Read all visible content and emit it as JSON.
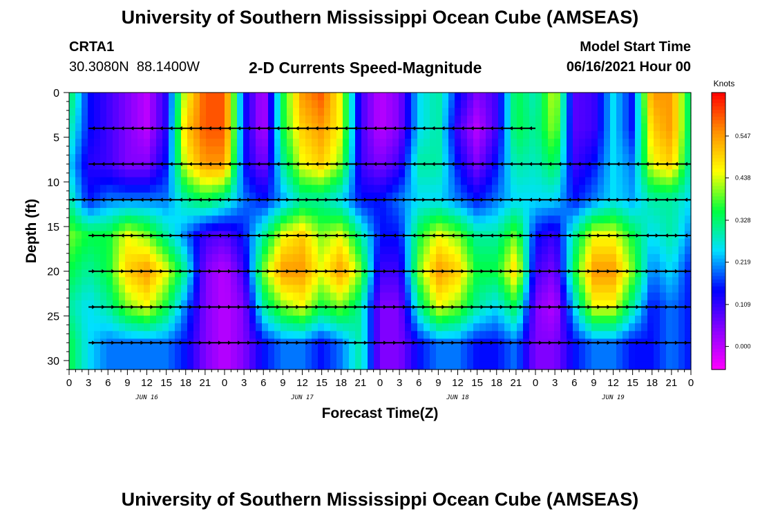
{
  "header": {
    "title": "University of Southern Mississippi Ocean Cube (AMSEAS)",
    "station": "CRTA1",
    "coords": "30.3080N  88.1400W",
    "subtitle": "2-D Currents Speed-Magnitude",
    "model_start_label": "Model Start Time",
    "model_start_value": "06/16/2021 Hour 00"
  },
  "footer": {
    "title": "University of Southern Mississippi Ocean Cube (AMSEAS)"
  },
  "colorbar": {
    "unit": "Knots",
    "labels": [
      "0.547",
      "0.438",
      "0.328",
      "0.219",
      "0.109",
      "0.000"
    ],
    "label_values": [
      0.547,
      0.438,
      0.328,
      0.219,
      0.109,
      0.0
    ],
    "vmin": -0.06,
    "vmax": 0.66,
    "colors": [
      "#ff00ff",
      "#8a00ff",
      "#0000ff",
      "#00e0ff",
      "#00ff40",
      "#ffff00",
      "#ff9000",
      "#ff0000"
    ]
  },
  "chart_data": {
    "type": "heatmap",
    "title": "2-D Currents Speed-Magnitude",
    "xlabel": "Forecast Time(Z)",
    "ylabel": "Depth (ft)",
    "x_ticks": [
      "0",
      "3",
      "6",
      "9",
      "12",
      "15",
      "18",
      "21",
      "0",
      "3",
      "6",
      "9",
      "12",
      "15",
      "18",
      "21",
      "0",
      "3",
      "6",
      "9",
      "12",
      "15",
      "18",
      "21",
      "0",
      "3",
      "6",
      "9",
      "12",
      "15",
      "18",
      "21",
      "0"
    ],
    "day_labels": [
      "JUN 16",
      "JUN 17",
      "JUN 18",
      "JUN 19"
    ],
    "xlim": [
      0,
      96
    ],
    "y_ticks": [
      0,
      5,
      10,
      15,
      20,
      25,
      30
    ],
    "ylim": [
      0,
      31
    ],
    "y_inverted": true,
    "time_hours": [
      0,
      3,
      6,
      9,
      12,
      15,
      18,
      21,
      24,
      27,
      30,
      33,
      36,
      39,
      42,
      45,
      48,
      51,
      54,
      57,
      60,
      63,
      66,
      69,
      72,
      75,
      78,
      81,
      84,
      87,
      90,
      93,
      96
    ],
    "depth_ft": [
      0,
      4,
      8,
      12,
      16,
      20,
      24,
      28
    ],
    "speed_knots": [
      [
        0.35,
        0.15,
        0.1,
        0.05,
        0.0,
        0.12,
        0.45,
        0.6,
        0.6,
        0.15,
        0.0,
        0.35,
        0.55,
        0.6,
        0.45,
        0.1,
        0.0,
        0.05,
        0.25,
        0.3,
        0.15,
        0.05,
        0.1,
        0.35,
        0.28,
        0.45,
        0.08,
        0.1,
        0.25,
        0.15,
        0.55,
        0.55,
        0.3
      ],
      [
        0.3,
        0.15,
        0.1,
        0.05,
        0.0,
        0.12,
        0.5,
        0.6,
        0.6,
        0.15,
        0.0,
        0.35,
        0.5,
        0.55,
        0.45,
        0.1,
        0.0,
        0.05,
        0.25,
        0.3,
        0.1,
        0.0,
        0.1,
        0.35,
        0.3,
        0.42,
        0.08,
        0.1,
        0.25,
        0.15,
        0.5,
        0.55,
        0.3
      ],
      [
        0.25,
        0.12,
        0.1,
        0.05,
        0.05,
        0.15,
        0.45,
        0.55,
        0.55,
        0.15,
        0.05,
        0.3,
        0.45,
        0.5,
        0.4,
        0.1,
        0.05,
        0.1,
        0.3,
        0.3,
        0.15,
        0.05,
        0.15,
        0.3,
        0.28,
        0.35,
        0.1,
        0.15,
        0.25,
        0.2,
        0.45,
        0.5,
        0.28
      ],
      [
        0.3,
        0.15,
        0.2,
        0.2,
        0.2,
        0.2,
        0.3,
        0.35,
        0.3,
        0.2,
        0.15,
        0.22,
        0.3,
        0.3,
        0.25,
        0.15,
        0.15,
        0.2,
        0.25,
        0.25,
        0.2,
        0.15,
        0.2,
        0.25,
        0.25,
        0.25,
        0.15,
        0.2,
        0.25,
        0.22,
        0.3,
        0.3,
        0.25
      ],
      [
        0.4,
        0.35,
        0.35,
        0.45,
        0.4,
        0.3,
        0.2,
        0.1,
        0.08,
        0.15,
        0.3,
        0.45,
        0.5,
        0.4,
        0.45,
        0.3,
        0.15,
        0.15,
        0.35,
        0.45,
        0.4,
        0.3,
        0.3,
        0.4,
        0.15,
        0.1,
        0.3,
        0.45,
        0.45,
        0.35,
        0.25,
        0.3,
        0.2
      ],
      [
        0.35,
        0.3,
        0.35,
        0.5,
        0.55,
        0.45,
        0.3,
        0.05,
        0.0,
        0.1,
        0.4,
        0.55,
        0.55,
        0.45,
        0.55,
        0.4,
        0.1,
        0.1,
        0.4,
        0.55,
        0.5,
        0.35,
        0.35,
        0.5,
        0.1,
        0.05,
        0.35,
        0.55,
        0.55,
        0.4,
        0.2,
        0.25,
        0.15
      ],
      [
        0.3,
        0.25,
        0.3,
        0.4,
        0.45,
        0.35,
        0.2,
        0.05,
        0.0,
        0.05,
        0.3,
        0.4,
        0.45,
        0.35,
        0.4,
        0.3,
        0.05,
        0.05,
        0.3,
        0.45,
        0.4,
        0.3,
        0.25,
        0.35,
        0.05,
        0.0,
        0.25,
        0.45,
        0.45,
        0.3,
        0.15,
        0.2,
        0.15
      ],
      [
        0.35,
        0.25,
        0.2,
        0.2,
        0.2,
        0.2,
        0.15,
        0.05,
        0.0,
        0.05,
        0.15,
        0.2,
        0.2,
        0.15,
        0.2,
        0.3,
        0.05,
        0.05,
        0.15,
        0.2,
        0.2,
        0.15,
        0.15,
        0.2,
        0.05,
        0.05,
        0.15,
        0.2,
        0.2,
        0.15,
        0.15,
        0.2,
        0.15
      ]
    ],
    "arrow_rows_depth_ft": [
      4,
      8,
      12,
      16,
      20,
      24,
      28
    ],
    "arrow_segments": [
      {
        "depth": 4,
        "start": 3,
        "end": 72,
        "direction": "left"
      },
      {
        "depth": 8,
        "start": 3,
        "end": 96,
        "direction": "left"
      },
      {
        "depth": 12,
        "start": 0,
        "end": 96,
        "direction": "mixed"
      },
      {
        "depth": 16,
        "start": 3,
        "end": 96,
        "direction": "mixed"
      },
      {
        "depth": 20,
        "start": 3,
        "end": 96,
        "direction": "right"
      },
      {
        "depth": 24,
        "start": 3,
        "end": 96,
        "direction": "right"
      },
      {
        "depth": 28,
        "start": 3,
        "end": 96,
        "direction": "right"
      }
    ]
  }
}
